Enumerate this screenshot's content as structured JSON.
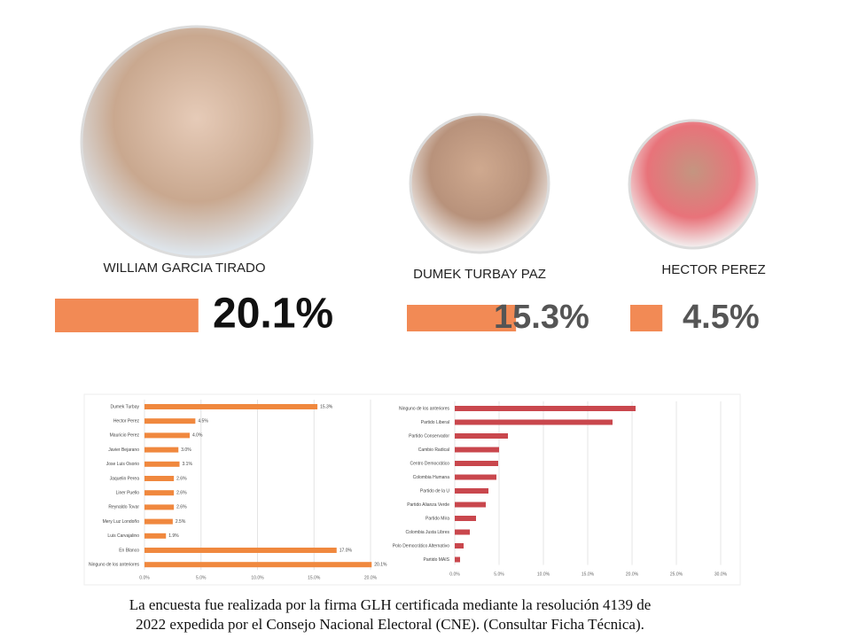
{
  "candidates": [
    {
      "name": "WILLIAM GARCIA TIRADO",
      "value": 20.1,
      "value_label": "20.1%"
    },
    {
      "name": "DUMEK TURBAY PAZ",
      "value": 15.3,
      "value_label": "15.3%"
    },
    {
      "name": "HECTOR PEREZ",
      "value": 4.5,
      "value_label": "4.5%"
    }
  ],
  "candidate_bar_color": "#f28a55",
  "chart_data": [
    {
      "type": "hbar",
      "color": "#f0883e",
      "categories": [
        "Dumek Turbay",
        "Hector Perez",
        "Mauricio Perez",
        "Javier Bejarano",
        "Jose Luis Osorio",
        "Jaquelin Perea",
        "Liner Puello",
        "Reynaldo Tovar",
        "Mery Luz Londoño",
        "Luis Carvajalino",
        "En Blanco",
        "Ninguno de los anteriores"
      ],
      "values": [
        15.3,
        4.5,
        4.0,
        3.0,
        3.1,
        2.6,
        2.6,
        2.6,
        2.5,
        1.9,
        17.0,
        20.1
      ],
      "value_labels": [
        "15.3%",
        "4.5%",
        "4.0%",
        "3.0%",
        "3.1%",
        "2.6%",
        "2.6%",
        "2.6%",
        "2.5%",
        "1.9%",
        "17.0%",
        "20.1%"
      ],
      "xlim": [
        0,
        20
      ],
      "xticks": [
        {
          "value": 0,
          "label": "0.0%"
        },
        {
          "value": 5,
          "label": "5.0%"
        },
        {
          "value": 10,
          "label": "10.0%"
        },
        {
          "value": 15,
          "label": "15.0%"
        },
        {
          "value": 20,
          "label": "20.0%"
        }
      ],
      "grid": true
    },
    {
      "type": "hbar",
      "color": "#c9474d",
      "categories": [
        "Ninguno de los anteriores",
        "Partido Liberal",
        "Partido Conservador",
        "Cambio Radical",
        "Centro Democrático",
        "Colombia Humana",
        "Partido de la U",
        "Partido Alianza Verde",
        "Partido Mira",
        "Colombia Justa Libres",
        "Polo Democrático Alternativo",
        "Partido MAIS"
      ],
      "values": [
        20.4,
        17.8,
        6.0,
        5.0,
        4.9,
        4.7,
        3.8,
        3.5,
        2.4,
        1.7,
        1.0,
        0.6
      ],
      "xlim": [
        0,
        30
      ],
      "xticks": [
        {
          "value": 0,
          "label": "0.0%"
        },
        {
          "value": 5,
          "label": "5.0%"
        },
        {
          "value": 10,
          "label": "10.0%"
        },
        {
          "value": 15,
          "label": "15.0%"
        },
        {
          "value": 20,
          "label": "20.0%"
        },
        {
          "value": 25,
          "label": "25.0%"
        },
        {
          "value": 30,
          "label": "30.0%"
        }
      ],
      "grid": true
    }
  ],
  "footnote": [
    "La encuesta fue realizada por la firma GLH certificada mediante la resolución 4139 de",
    "2022 expedida por el Consejo Nacional Electoral (CNE). (Consultar Ficha Técnica)."
  ]
}
